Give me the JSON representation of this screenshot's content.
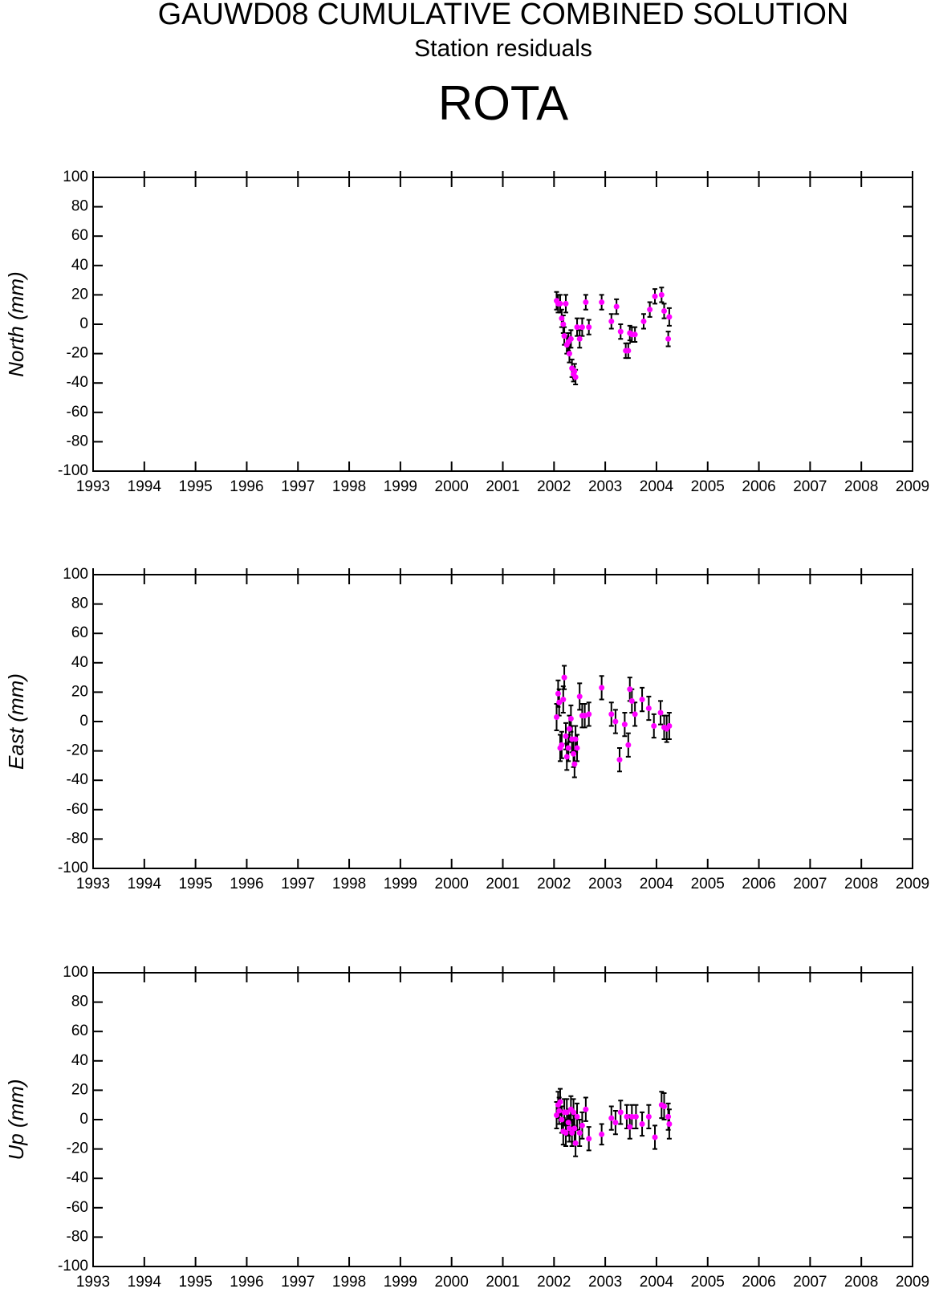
{
  "header": {
    "title": "GAUWD08 CUMULATIVE COMBINED SOLUTION",
    "subtitle": "Station residuals",
    "station": "ROTA"
  },
  "chart_data": [
    {
      "type": "scatter",
      "ylabel": "North (mm)",
      "color": "#ff00ff",
      "error_color": "#000000",
      "xlim": [
        1993,
        2009
      ],
      "xticks": [
        1993,
        1994,
        1995,
        1996,
        1997,
        1998,
        1999,
        2000,
        2001,
        2002,
        2003,
        2004,
        2005,
        2006,
        2007,
        2008,
        2009
      ],
      "ylim": [
        -100,
        100
      ],
      "yticks": [
        -100,
        -80,
        -60,
        -40,
        -20,
        0,
        20,
        40,
        60,
        80,
        100
      ],
      "x": [
        2002.05,
        2002.08,
        2002.12,
        2002.15,
        2002.18,
        2002.2,
        2002.23,
        2002.25,
        2002.28,
        2002.3,
        2002.33,
        2002.35,
        2002.38,
        2002.4,
        2002.42,
        2002.45,
        2002.5,
        2002.55,
        2002.62,
        2002.68,
        2002.93,
        2003.12,
        2003.22,
        2003.3,
        2003.4,
        2003.45,
        2003.48,
        2003.52,
        2003.58,
        2003.75,
        2003.87,
        2003.97,
        2004.1,
        2004.15,
        2004.23,
        2004.25
      ],
      "values": [
        16,
        14,
        14,
        4,
        0,
        -8,
        14,
        -14,
        -12,
        -20,
        -10,
        -30,
        -34,
        -32,
        -36,
        -2,
        -10,
        -2,
        15,
        -2,
        15,
        2,
        12,
        -5,
        -18,
        -18,
        -6,
        -7,
        -7,
        2,
        10,
        19,
        20,
        9,
        -10,
        5
      ],
      "errors": [
        6,
        6,
        6,
        6,
        6,
        6,
        6,
        6,
        6,
        6,
        6,
        6,
        5,
        5,
        5,
        6,
        6,
        6,
        5,
        5,
        5,
        5,
        5,
        5,
        5,
        5,
        5,
        5,
        5,
        5,
        5,
        5,
        5,
        5,
        5,
        6
      ]
    },
    {
      "type": "scatter",
      "ylabel": "East (mm)",
      "color": "#ff00ff",
      "error_color": "#000000",
      "xlim": [
        1993,
        2009
      ],
      "xticks": [
        1993,
        1994,
        1995,
        1996,
        1997,
        1998,
        1999,
        2000,
        2001,
        2002,
        2003,
        2004,
        2005,
        2006,
        2007,
        2008,
        2009
      ],
      "ylim": [
        -100,
        100
      ],
      "yticks": [
        -100,
        -80,
        -60,
        -40,
        -20,
        0,
        20,
        40,
        60,
        80,
        100
      ],
      "x": [
        2002.05,
        2002.08,
        2002.1,
        2002.12,
        2002.15,
        2002.18,
        2002.2,
        2002.23,
        2002.25,
        2002.28,
        2002.3,
        2002.33,
        2002.35,
        2002.38,
        2002.4,
        2002.42,
        2002.45,
        2002.5,
        2002.55,
        2002.6,
        2002.68,
        2002.93,
        2003.12,
        2003.2,
        2003.28,
        2003.38,
        2003.45,
        2003.48,
        2003.52,
        2003.58,
        2003.72,
        2003.85,
        2003.95,
        2004.08,
        2004.15,
        2004.2,
        2004.25
      ],
      "values": [
        3,
        19,
        13,
        -18,
        -16,
        15,
        30,
        -10,
        -24,
        -18,
        -5,
        2,
        -12,
        -22,
        -29,
        -12,
        -18,
        17,
        4,
        4,
        5,
        23,
        5,
        0,
        -26,
        -2,
        -16,
        22,
        14,
        5,
        15,
        9,
        -3,
        6,
        -4,
        -5,
        -3
      ],
      "errors": [
        9,
        9,
        9,
        9,
        9,
        9,
        8,
        9,
        9,
        9,
        9,
        9,
        9,
        9,
        9,
        9,
        9,
        9,
        8,
        8,
        8,
        8,
        8,
        8,
        8,
        8,
        8,
        8,
        8,
        8,
        8,
        8,
        8,
        8,
        8,
        9,
        9
      ]
    },
    {
      "type": "scatter",
      "ylabel": "Up (mm)",
      "color": "#ff00ff",
      "error_color": "#000000",
      "xlim": [
        1993,
        2009
      ],
      "xticks": [
        1993,
        1994,
        1995,
        1996,
        1997,
        1998,
        1999,
        2000,
        2001,
        2002,
        2003,
        2004,
        2005,
        2006,
        2007,
        2008,
        2009
      ],
      "ylim": [
        -100,
        100
      ],
      "yticks": [
        -100,
        -80,
        -60,
        -40,
        -20,
        0,
        20,
        40,
        60,
        80,
        100
      ],
      "x": [
        2002.05,
        2002.08,
        2002.1,
        2002.12,
        2002.15,
        2002.18,
        2002.2,
        2002.23,
        2002.25,
        2002.28,
        2002.3,
        2002.33,
        2002.35,
        2002.38,
        2002.4,
        2002.42,
        2002.45,
        2002.5,
        2002.55,
        2002.62,
        2002.68,
        2002.93,
        2003.12,
        2003.2,
        2003.3,
        2003.42,
        2003.48,
        2003.52,
        2003.6,
        2003.72,
        2003.85,
        2003.97,
        2004.1,
        2004.15,
        2004.23,
        2004.25
      ],
      "values": [
        3,
        10,
        6,
        12,
        0,
        -8,
        5,
        -9,
        5,
        -2,
        -6,
        7,
        -9,
        5,
        -6,
        -16,
        2,
        -9,
        -4,
        7,
        -13,
        -10,
        1,
        -2,
        5,
        2,
        -5,
        2,
        2,
        -3,
        2,
        -12,
        10,
        9,
        2,
        -3
      ],
      "errors": [
        9,
        9,
        9,
        9,
        9,
        9,
        9,
        9,
        9,
        9,
        9,
        9,
        9,
        9,
        9,
        9,
        9,
        9,
        9,
        8,
        8,
        7,
        8,
        8,
        8,
        8,
        8,
        8,
        8,
        8,
        8,
        8,
        9,
        9,
        9,
        10
      ]
    }
  ]
}
